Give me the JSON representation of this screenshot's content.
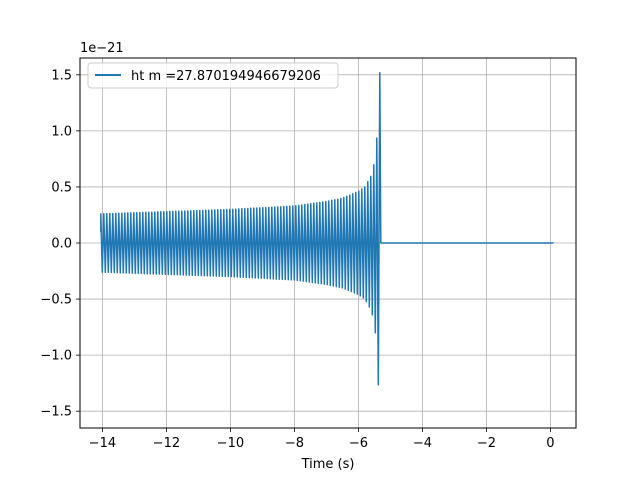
{
  "chart_data": {
    "type": "line",
    "title": "",
    "xlabel": "Time (s)",
    "ylabel": "",
    "y_scale_label": "1e−21",
    "xlim": [
      -14.7,
      0.8
    ],
    "ylim": [
      -1.65,
      1.65
    ],
    "x_ticks": [
      -14,
      -12,
      -10,
      -8,
      -6,
      -4,
      -2,
      0
    ],
    "x_tick_labels": [
      "−14",
      "−12",
      "−10",
      "−8",
      "−6",
      "−4",
      "−2",
      "0"
    ],
    "y_ticks": [
      -1.5,
      -1.0,
      -0.5,
      0.0,
      0.5,
      1.0,
      1.5
    ],
    "y_tick_labels": [
      "−1.5",
      "−1.0",
      "−0.5",
      "0.0",
      "0.5",
      "1.0",
      "1.5"
    ],
    "grid": true,
    "legend_position": "top-left",
    "series": [
      {
        "name": "ht m =27.870194946679206",
        "color": "#1f77b4",
        "envelope": {
          "x": [
            -14.05,
            -12,
            -10,
            -8,
            -7,
            -6.5,
            -6.0,
            -5.8,
            -5.6,
            -5.5,
            -5.42,
            -5.38,
            -5.35,
            -5.33
          ],
          "amplitude": [
            0.26,
            0.28,
            0.3,
            0.33,
            0.37,
            0.4,
            0.46,
            0.5,
            0.6,
            0.72,
            0.95,
            1.25,
            1.5,
            1.52
          ]
        },
        "flat_after": {
          "x_start": -5.3,
          "x_end": 0.1,
          "value": 0.0
        }
      }
    ]
  }
}
